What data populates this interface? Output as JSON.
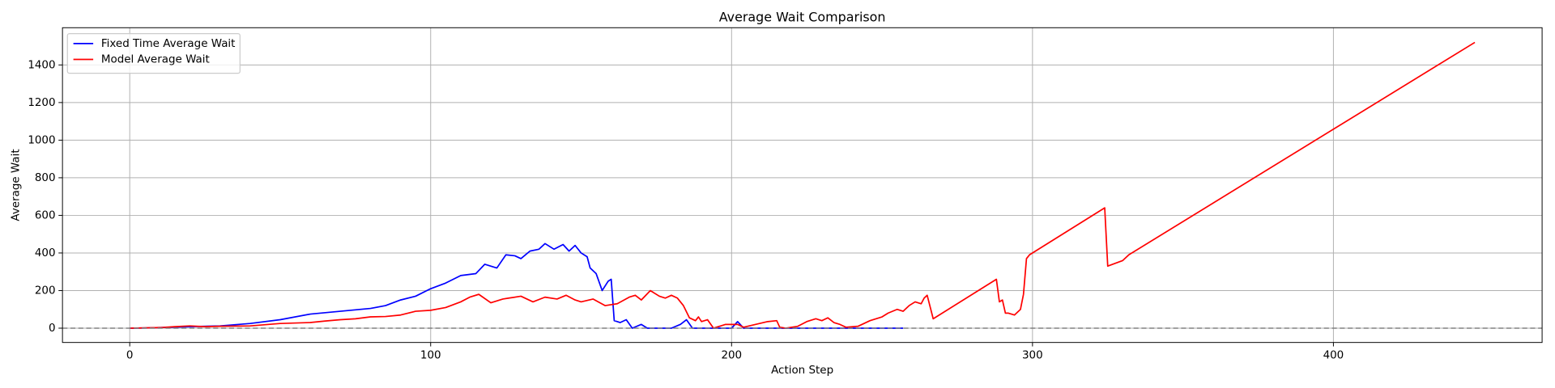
{
  "chart_data": {
    "type": "line",
    "title": "Average Wait Comparison",
    "x_label": "Action Step",
    "y_label": "Average Wait",
    "xlim": [
      -22.35,
      469.35
    ],
    "ylim": [
      -76,
      1598
    ],
    "xticks": [
      0,
      100,
      200,
      300,
      400
    ],
    "yticks": [
      0,
      200,
      400,
      600,
      800,
      1000,
      1200,
      1400
    ],
    "grid": true,
    "legend": "upper left",
    "hline": 0,
    "series": [
      {
        "name": "Fixed Time Average Wait",
        "color": "#0000ff",
        "x": [
          0,
          5,
          10,
          20,
          30,
          40,
          50,
          60,
          70,
          80,
          85,
          90,
          95,
          100,
          105,
          110,
          115,
          118,
          122,
          125,
          128,
          130,
          133,
          136,
          138,
          141,
          144,
          146,
          148,
          150,
          152,
          153,
          155,
          157,
          159,
          160,
          161,
          163,
          165,
          167,
          170,
          172,
          180,
          183,
          185,
          187,
          200,
          202,
          204,
          257
        ],
        "values": [
          0,
          1,
          3,
          8,
          12,
          25,
          45,
          75,
          90,
          105,
          120,
          150,
          170,
          210,
          240,
          280,
          290,
          340,
          320,
          390,
          385,
          370,
          410,
          420,
          450,
          420,
          445,
          410,
          440,
          400,
          380,
          320,
          290,
          200,
          250,
          260,
          40,
          30,
          45,
          0,
          20,
          0,
          0,
          20,
          45,
          0,
          0,
          35,
          0,
          0
        ]
      },
      {
        "name": "Model Average Wait",
        "color": "#ff0000",
        "x": [
          0,
          10,
          15,
          20,
          25,
          30,
          40,
          50,
          60,
          65,
          70,
          75,
          80,
          85,
          90,
          95,
          100,
          105,
          110,
          113,
          116,
          120,
          124,
          126,
          130,
          134,
          138,
          142,
          145,
          148,
          150,
          154,
          158,
          162,
          166,
          168,
          170,
          173,
          176,
          178,
          180,
          182,
          184,
          186,
          188,
          189,
          190,
          192,
          194,
          198,
          202,
          204,
          208,
          212,
          215,
          216,
          218,
          222,
          225,
          228,
          230,
          232,
          234,
          236,
          238,
          242,
          246,
          250,
          252,
          255,
          257,
          259,
          261,
          263,
          264,
          265,
          267,
          288,
          289,
          290,
          291,
          292,
          294,
          296,
          297,
          298,
          299,
          324,
          325,
          330,
          332,
          447
        ],
        "values": [
          0,
          3,
          8,
          12,
          8,
          10,
          12,
          25,
          30,
          38,
          45,
          50,
          60,
          62,
          70,
          90,
          95,
          110,
          140,
          165,
          180,
          135,
          155,
          160,
          170,
          140,
          165,
          155,
          175,
          150,
          140,
          155,
          120,
          130,
          165,
          175,
          150,
          200,
          170,
          160,
          175,
          160,
          120,
          55,
          40,
          60,
          35,
          45,
          0,
          20,
          20,
          5,
          20,
          35,
          40,
          5,
          0,
          10,
          35,
          50,
          40,
          55,
          30,
          20,
          5,
          10,
          40,
          60,
          80,
          100,
          90,
          120,
          140,
          130,
          160,
          175,
          50,
          260,
          140,
          150,
          80,
          80,
          70,
          100,
          180,
          370,
          390,
          640,
          330,
          360,
          390,
          1520
        ]
      }
    ]
  }
}
